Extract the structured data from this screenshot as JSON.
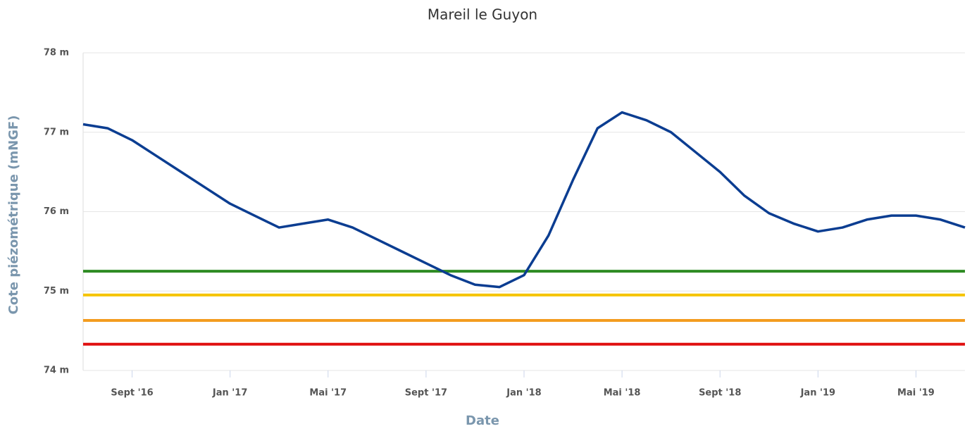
{
  "chart_data": {
    "type": "line",
    "title": "Mareil le Guyon",
    "xlabel": "Date",
    "ylabel": "Cote piézométrique (mNGF)",
    "x": [
      "2016-07",
      "2016-08",
      "2016-09",
      "2016-10",
      "2016-11",
      "2016-12",
      "2017-01",
      "2017-02",
      "2017-03",
      "2017-04",
      "2017-05",
      "2017-06",
      "2017-07",
      "2017-08",
      "2017-09",
      "2017-10",
      "2017-11",
      "2017-12",
      "2018-01",
      "2018-02",
      "2018-03",
      "2018-04",
      "2018-05",
      "2018-06",
      "2018-07",
      "2018-08",
      "2018-09",
      "2018-10",
      "2018-11",
      "2018-12",
      "2019-01",
      "2019-02",
      "2019-03",
      "2019-04",
      "2019-05",
      "2019-06",
      "2019-07"
    ],
    "series": [
      {
        "color": "#0b3d91",
        "values": [
          77.1,
          77.05,
          76.9,
          76.7,
          76.5,
          76.3,
          76.1,
          75.95,
          75.8,
          75.85,
          75.9,
          75.8,
          75.65,
          75.5,
          75.35,
          75.2,
          75.08,
          75.05,
          75.2,
          75.7,
          76.4,
          77.05,
          77.25,
          77.15,
          77.0,
          76.75,
          76.5,
          76.2,
          75.98,
          75.85,
          75.75,
          75.8,
          75.9,
          75.95,
          75.95,
          75.9,
          75.8
        ]
      }
    ],
    "hlines": [
      {
        "value": 75.25,
        "color": "#2e8b22"
      },
      {
        "value": 74.95,
        "color": "#f5c400"
      },
      {
        "value": 74.63,
        "color": "#f39c1f"
      },
      {
        "value": 74.33,
        "color": "#e01010"
      }
    ],
    "xlim": [
      "2016-07",
      "2019-07"
    ],
    "xticks": [
      {
        "value": "2016-09",
        "label": "Sept '16"
      },
      {
        "value": "2017-01",
        "label": "Jan '17"
      },
      {
        "value": "2017-05",
        "label": "Mai '17"
      },
      {
        "value": "2017-09",
        "label": "Sept '17"
      },
      {
        "value": "2018-01",
        "label": "Jan '18"
      },
      {
        "value": "2018-05",
        "label": "Mai '18"
      },
      {
        "value": "2018-09",
        "label": "Sept '18"
      },
      {
        "value": "2019-01",
        "label": "Jan '19"
      },
      {
        "value": "2019-05",
        "label": "Mai '19"
      }
    ],
    "ylim": [
      74,
      78
    ],
    "yticks": [
      {
        "value": 74,
        "label": "74 m"
      },
      {
        "value": 75,
        "label": "75 m"
      },
      {
        "value": 76,
        "label": "76 m"
      },
      {
        "value": 77,
        "label": "77 m"
      },
      {
        "value": 78,
        "label": "78 m"
      }
    ],
    "grid": true
  }
}
